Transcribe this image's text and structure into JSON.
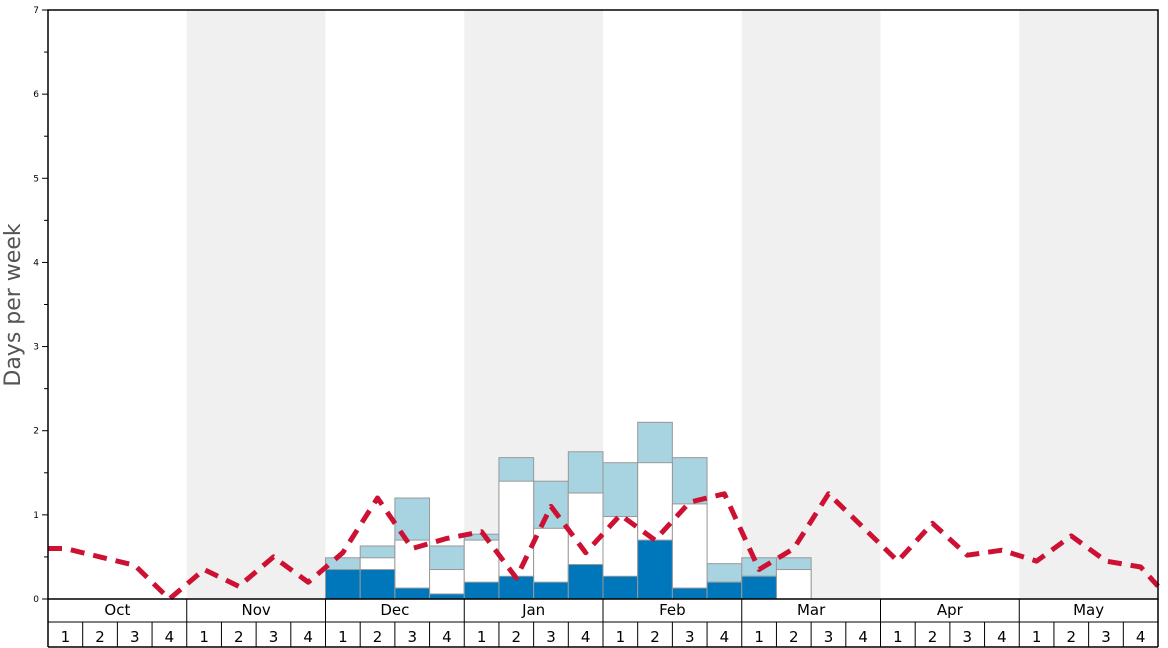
{
  "chart_data": {
    "type": "bar",
    "ylabel": "Days per week",
    "ylim": [
      0,
      7
    ],
    "yticks": [
      "0",
      "1",
      "2",
      "3",
      "4",
      "5",
      "6",
      "7"
    ],
    "months": [
      "Oct",
      "Nov",
      "Dec",
      "Jan",
      "Feb",
      "Mar",
      "Apr",
      "May"
    ],
    "weeks": [
      "1",
      "2",
      "3",
      "4"
    ],
    "alternate_month_shading": true,
    "colors": {
      "dark_bar": "#0077bb",
      "white_bar": "#ffffff",
      "light_bar": "#a8d3e0",
      "average_line": "#cc1133",
      "shade": "#f0f0f0"
    },
    "series": [
      {
        "key": "dark",
        "values": [
          0,
          0,
          0,
          0,
          0,
          0,
          0,
          0,
          0.35,
          0.35,
          0.13,
          0.06,
          0.2,
          0.27,
          0.2,
          0.41,
          0.27,
          0.7,
          0.13,
          0.2,
          0.27,
          0,
          0,
          0,
          0,
          0,
          0,
          0,
          0,
          0,
          0,
          0
        ]
      },
      {
        "key": "white",
        "values": [
          0,
          0,
          0,
          0,
          0,
          0,
          0,
          0,
          0.35,
          0.49,
          0.7,
          0.35,
          0.7,
          1.4,
          0.84,
          1.26,
          0.98,
          1.62,
          1.13,
          0.2,
          0.27,
          0.35,
          0,
          0,
          0,
          0,
          0,
          0,
          0,
          0,
          0,
          0
        ]
      },
      {
        "key": "light",
        "values": [
          0,
          0,
          0,
          0,
          0,
          0,
          0,
          0,
          0.49,
          0.63,
          1.2,
          0.63,
          0.77,
          1.68,
          1.4,
          1.75,
          1.62,
          2.1,
          1.68,
          0.42,
          0.49,
          0.49,
          0,
          0,
          0,
          0,
          0,
          0,
          0,
          0,
          0,
          0
        ]
      },
      {
        "key": "average",
        "values": [
          0.6,
          0.5,
          0.4,
          0.0,
          0.35,
          0.15,
          0.5,
          0.2,
          0.55,
          1.2,
          0.6,
          0.72,
          0.8,
          0.25,
          1.1,
          0.55,
          1.0,
          0.7,
          1.15,
          1.25,
          0.35,
          0.6,
          1.25,
          0.85,
          0.45,
          0.9,
          0.52,
          0.58,
          0.45,
          0.75,
          0.45,
          0.38
        ]
      }
    ]
  }
}
